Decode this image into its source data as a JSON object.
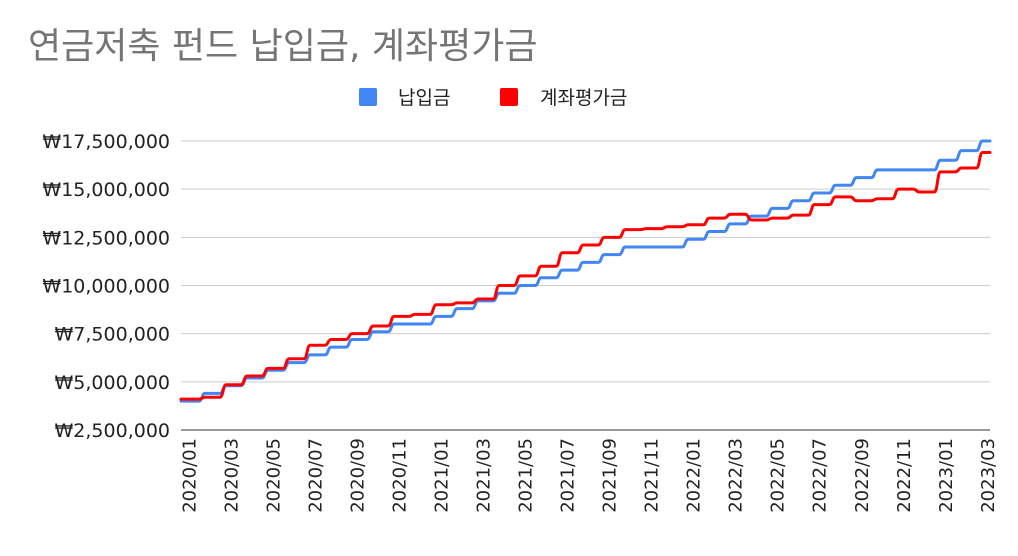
{
  "chart_data": {
    "type": "line",
    "title": "연금저축 펀드 납입금, 계좌평가금",
    "legend_position": "top",
    "grid": true,
    "ylim": [
      2500000,
      17500000
    ],
    "y_ticks": [
      {
        "value": 2500000,
        "label": "₩2,500,000"
      },
      {
        "value": 5000000,
        "label": "₩5,000,000"
      },
      {
        "value": 7500000,
        "label": "₩7,500,000"
      },
      {
        "value": 10000000,
        "label": "₩10,000,000"
      },
      {
        "value": 12500000,
        "label": "₩12,500,000"
      },
      {
        "value": 15000000,
        "label": "₩15,000,000"
      },
      {
        "value": 17500000,
        "label": "₩17,500,000"
      }
    ],
    "x_ticks": [
      "2020/01",
      "2020/03",
      "2020/05",
      "2020/07",
      "2020/09",
      "2020/11",
      "2021/01",
      "2021/03",
      "2021/05",
      "2021/07",
      "2021/09",
      "2021/11",
      "2022/01",
      "2022/03",
      "2022/05",
      "2022/07",
      "2022/09",
      "2022/11",
      "2023/01",
      "2023/03"
    ],
    "x": [
      "2020/01",
      "2020/02",
      "2020/03",
      "2020/04",
      "2020/05",
      "2020/06",
      "2020/07",
      "2020/08",
      "2020/09",
      "2020/10",
      "2020/11",
      "2020/12",
      "2021/01",
      "2021/02",
      "2021/03",
      "2021/04",
      "2021/05",
      "2021/06",
      "2021/07",
      "2021/08",
      "2021/09",
      "2021/10",
      "2021/11",
      "2021/12",
      "2022/01",
      "2022/02",
      "2022/03",
      "2022/04",
      "2022/05",
      "2022/06",
      "2022/07",
      "2022/08",
      "2022/09",
      "2022/10",
      "2022/11",
      "2022/12",
      "2023/01",
      "2023/02",
      "2023/03"
    ],
    "series": [
      {
        "name": "납입금",
        "color": "#4285f4",
        "values": [
          4000000,
          4400000,
          4800000,
          5200000,
          5600000,
          6000000,
          6400000,
          6800000,
          7200000,
          7600000,
          8000000,
          8000000,
          8400000,
          8800000,
          9200000,
          9600000,
          10000000,
          10400000,
          10800000,
          11200000,
          11600000,
          12000000,
          12000000,
          12000000,
          12400000,
          12800000,
          13200000,
          13600000,
          14000000,
          14400000,
          14800000,
          15200000,
          15600000,
          16000000,
          16000000,
          16000000,
          16500000,
          17000000,
          17500000
        ]
      },
      {
        "name": "계좌평가금",
        "color": "#ff0000",
        "values": [
          4100000,
          4200000,
          4850000,
          5300000,
          5700000,
          6200000,
          6900000,
          7200000,
          7500000,
          7900000,
          8400000,
          8500000,
          9000000,
          9100000,
          9300000,
          10000000,
          10500000,
          11000000,
          11700000,
          12100000,
          12500000,
          12900000,
          12950000,
          13050000,
          13150000,
          13500000,
          13700000,
          13400000,
          13500000,
          13650000,
          14200000,
          14600000,
          14400000,
          14500000,
          15000000,
          14850000,
          15900000,
          16100000,
          16900000
        ]
      }
    ]
  }
}
